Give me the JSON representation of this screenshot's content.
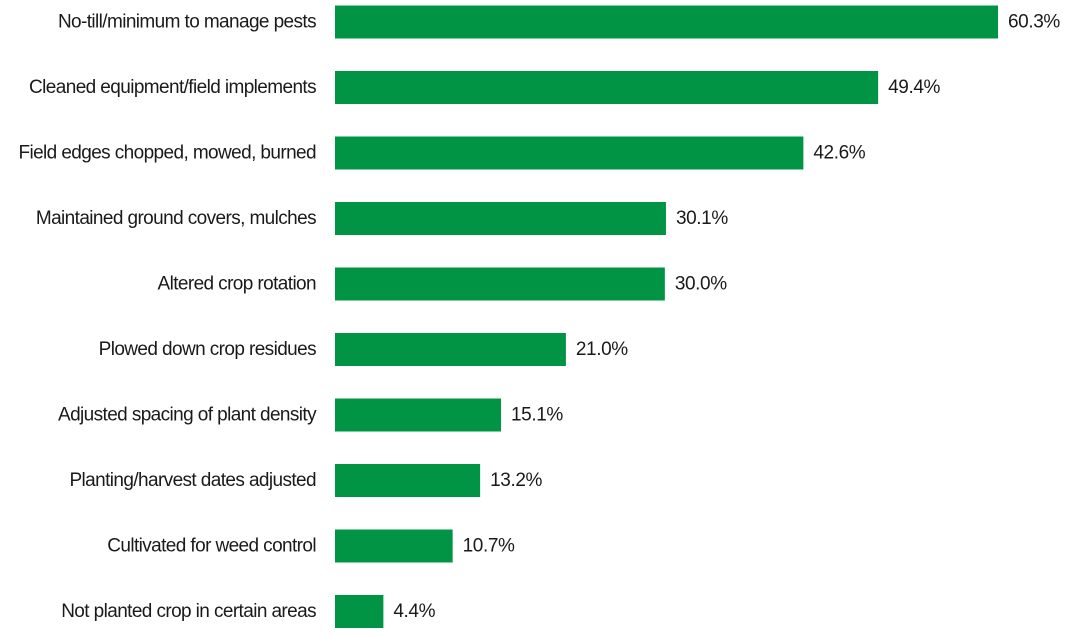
{
  "chart_data": {
    "type": "bar",
    "orientation": "horizontal",
    "categories": [
      "No-till/minimum to manage pests",
      "Cleaned equipment/field implements",
      "Field edges chopped, mowed, burned",
      "Maintained ground covers, mulches",
      "Altered crop rotation",
      "Plowed down crop residues",
      "Adjusted spacing of plant density",
      "Planting/harvest dates adjusted",
      "Cultivated for weed control",
      "Not planted crop in certain areas"
    ],
    "values": [
      60.3,
      49.4,
      42.6,
      30.1,
      30.0,
      21.0,
      15.1,
      13.2,
      10.7,
      4.4
    ],
    "value_labels": [
      "60.3%",
      "49.4%",
      "42.6%",
      "30.1%",
      "30.0%",
      "21.0%",
      "15.1%",
      "13.2%",
      "10.7%",
      "4.4%"
    ],
    "unit": "%",
    "bar_color": "#009444",
    "xlim": [
      0,
      60.3
    ],
    "grid": false,
    "legend": "none"
  }
}
